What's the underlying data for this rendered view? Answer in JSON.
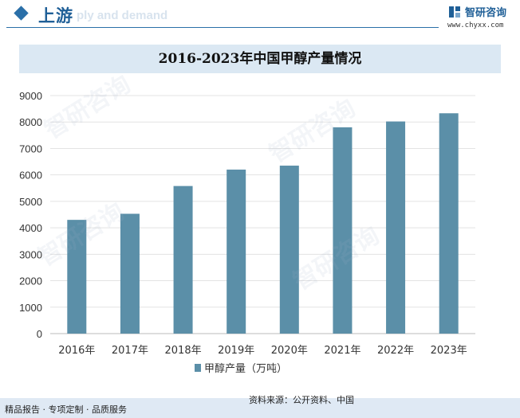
{
  "header": {
    "section_title": "上游",
    "section_subtitle": "ply and demand",
    "logo_text": "智研咨询",
    "logo_url": "www.chyxx.com"
  },
  "footer": {
    "left_text": "精品报告 · 专项定制 · 品质服务",
    "source_text": "资料来源：公开资料、中国"
  },
  "watermark_text": "智研咨询",
  "colors": {
    "bar": "#5b8fa8",
    "accent": "#1f5f97",
    "band": "#dbe8f3"
  },
  "chart_data": {
    "type": "bar",
    "title": "2016-2023年中国甲醇产量情况",
    "categories": [
      "2016年",
      "2017年",
      "2018年",
      "2019年",
      "2020年",
      "2021年",
      "2022年",
      "2023年"
    ],
    "series": [
      {
        "name": "甲醇产量（万吨）",
        "values": [
          4300,
          4530,
          5580,
          6200,
          6350,
          7800,
          8020,
          8330
        ]
      }
    ],
    "ylim": [
      0,
      9000
    ],
    "yticks": [
      0,
      1000,
      2000,
      3000,
      4000,
      5000,
      6000,
      7000,
      8000,
      9000
    ],
    "grid": true,
    "legend": "bottom"
  }
}
